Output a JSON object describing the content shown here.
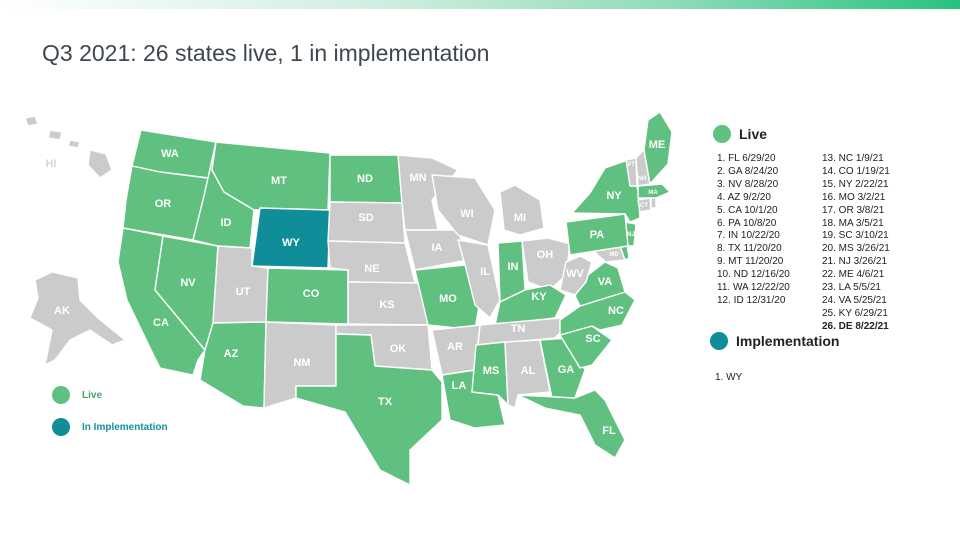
{
  "title": "Q3 2021: 26 states live, 1 in implementation",
  "colors": {
    "live": "#5fc07f",
    "implementation": "#0f8e99",
    "other": "#cbcbcb",
    "live_legend_text": "#3aa864",
    "impl_legend_text": "#12939c"
  },
  "legend_right": {
    "live_heading": "Live",
    "live_list_col1": [
      "1. FL 6/29/20",
      "2. GA 8/24/20",
      "3. NV 8/28/20",
      "4. AZ 9/2/20",
      "5. CA 10/1/20",
      "6. PA 10/8/20",
      "7. IN 10/22/20",
      "8. TX 11/20/20",
      "9. MT 11/20/20",
      "10. ND 12/16/20",
      "11. WA 12/22/20",
      "12. ID 12/31/20"
    ],
    "live_list_col2": [
      "13. NC 1/9/21",
      "14. CO 1/19/21",
      "15. NY 2/22/21",
      "16. MO 3/2/21",
      "17. OR 3/8/21",
      "18. MA 3/5/21",
      "19. SC 3/10/21",
      "20. MS 3/26/21",
      "21. NJ 3/26/21",
      "22. ME 4/6/21",
      "23. LA 5/5/21",
      "24. VA 5/25/21",
      "25. KY 6/29/21",
      "26. DE 8/22/21"
    ],
    "implementation_heading": "Implementation",
    "implementation_list": [
      "1. WY"
    ]
  },
  "legend_bottom": {
    "live_label": "Live",
    "implementation_label": "In Implementation"
  },
  "states": {
    "WA": {
      "label": "WA",
      "status": "live"
    },
    "OR": {
      "label": "OR",
      "status": "live"
    },
    "CA": {
      "label": "CA",
      "status": "live"
    },
    "NV": {
      "label": "NV",
      "status": "live"
    },
    "ID": {
      "label": "ID",
      "status": "live"
    },
    "MT": {
      "label": "MT",
      "status": "live"
    },
    "WY": {
      "label": "WY",
      "status": "implementation"
    },
    "UT": {
      "label": "UT",
      "status": "other"
    },
    "AZ": {
      "label": "AZ",
      "status": "live"
    },
    "CO": {
      "label": "CO",
      "status": "live"
    },
    "NM": {
      "label": "NM",
      "status": "other"
    },
    "ND": {
      "label": "ND",
      "status": "live"
    },
    "SD": {
      "label": "SD",
      "status": "other"
    },
    "NE": {
      "label": "NE",
      "status": "other"
    },
    "KS": {
      "label": "KS",
      "status": "other"
    },
    "OK": {
      "label": "OK",
      "status": "other"
    },
    "TX": {
      "label": "TX",
      "status": "live"
    },
    "MN": {
      "label": "MN",
      "status": "other"
    },
    "IA": {
      "label": "IA",
      "status": "other"
    },
    "MO": {
      "label": "MO",
      "status": "live"
    },
    "AR": {
      "label": "AR",
      "status": "other"
    },
    "LA": {
      "label": "LA",
      "status": "live"
    },
    "WI": {
      "label": "WI",
      "status": "other"
    },
    "IL": {
      "label": "IL",
      "status": "other"
    },
    "MI": {
      "label": "MI",
      "status": "other"
    },
    "IN": {
      "label": "IN",
      "status": "live"
    },
    "OH": {
      "label": "OH",
      "status": "other"
    },
    "KY": {
      "label": "KY",
      "status": "live"
    },
    "TN": {
      "label": "TN",
      "status": "other"
    },
    "MS": {
      "label": "MS",
      "status": "live"
    },
    "AL": {
      "label": "AL",
      "status": "other"
    },
    "GA": {
      "label": "GA",
      "status": "live"
    },
    "FL": {
      "label": "FL",
      "status": "live"
    },
    "SC": {
      "label": "SC",
      "status": "live"
    },
    "NC": {
      "label": "NC",
      "status": "live"
    },
    "VA": {
      "label": "VA",
      "status": "live"
    },
    "WV": {
      "label": "WV",
      "status": "other"
    },
    "MD": {
      "label": "MD",
      "status": "other"
    },
    "DE": {
      "label": "",
      "status": "live"
    },
    "NJ": {
      "label": "NJ",
      "status": "live"
    },
    "PA": {
      "label": "PA",
      "status": "live"
    },
    "NY": {
      "label": "NY",
      "status": "live"
    },
    "CT": {
      "label": "CT",
      "status": "other"
    },
    "RI": {
      "label": "",
      "status": "other"
    },
    "MA": {
      "label": "MA",
      "status": "live"
    },
    "VT": {
      "label": "VT",
      "status": "other"
    },
    "NH": {
      "label": "NH",
      "status": "other"
    },
    "ME": {
      "label": "ME",
      "status": "live"
    },
    "AK": {
      "label": "AK",
      "status": "other"
    },
    "HI": {
      "label": "HI",
      "status": "other"
    }
  }
}
